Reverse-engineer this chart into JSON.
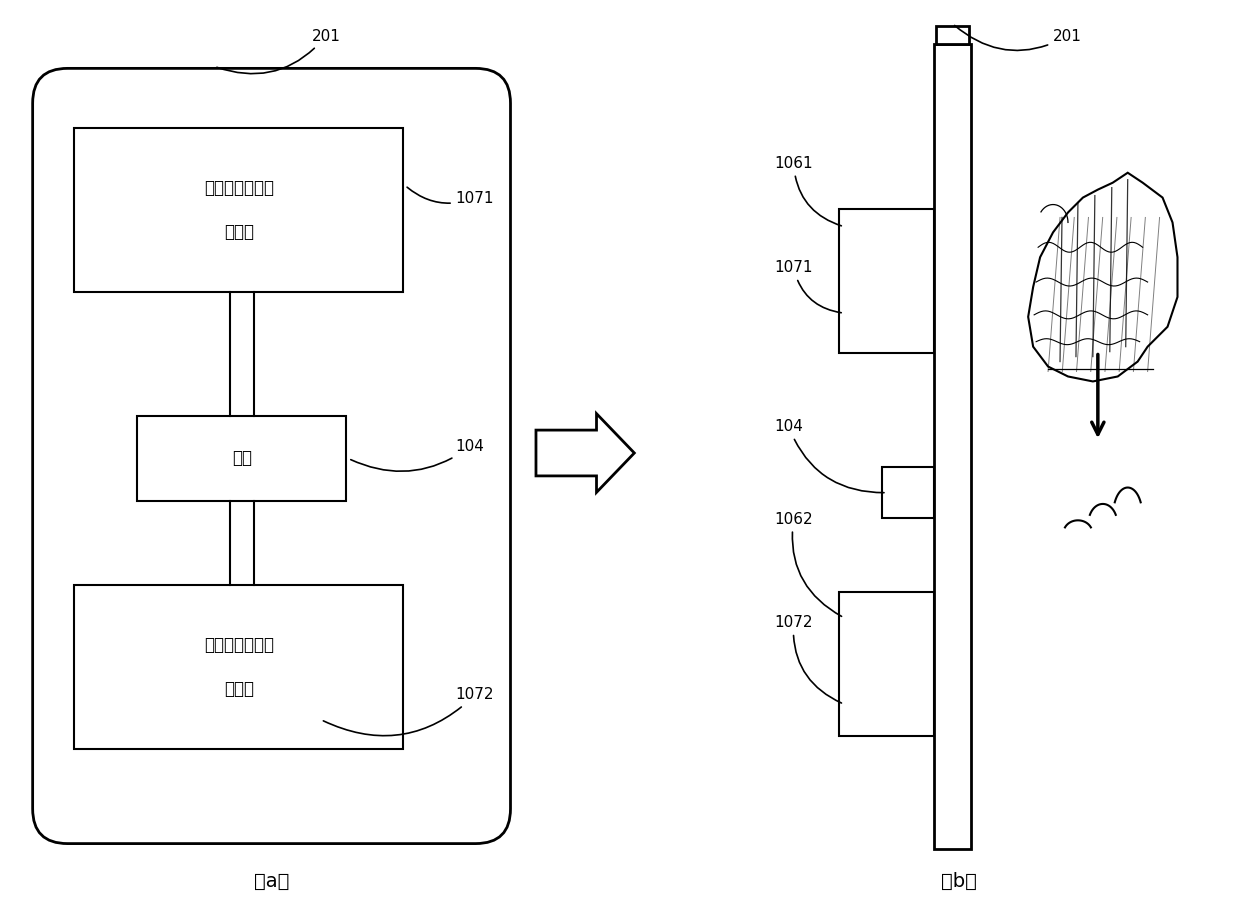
{
  "bg_color": "#ffffff",
  "line_color": "#000000",
  "fig_width": 12.4,
  "fig_height": 9.06,
  "label_201_a": "201",
  "label_1071_a": "1071",
  "label_104_a": "104",
  "label_1072_a": "1072",
  "label_a": "（a）",
  "label_b": "（b）",
  "label_201_b": "201",
  "label_1061": "1061",
  "label_1071_b": "1071",
  "label_104_b": "104",
  "label_1062": "1062",
  "label_1072_b": "1072",
  "text_box1_line1": "第一陶瓷扬声器",
  "text_box1_line2": "激励器",
  "text_box2": "馈点",
  "text_box3_line1": "第二陶瓷扬声器",
  "text_box3_line2": "激励器"
}
